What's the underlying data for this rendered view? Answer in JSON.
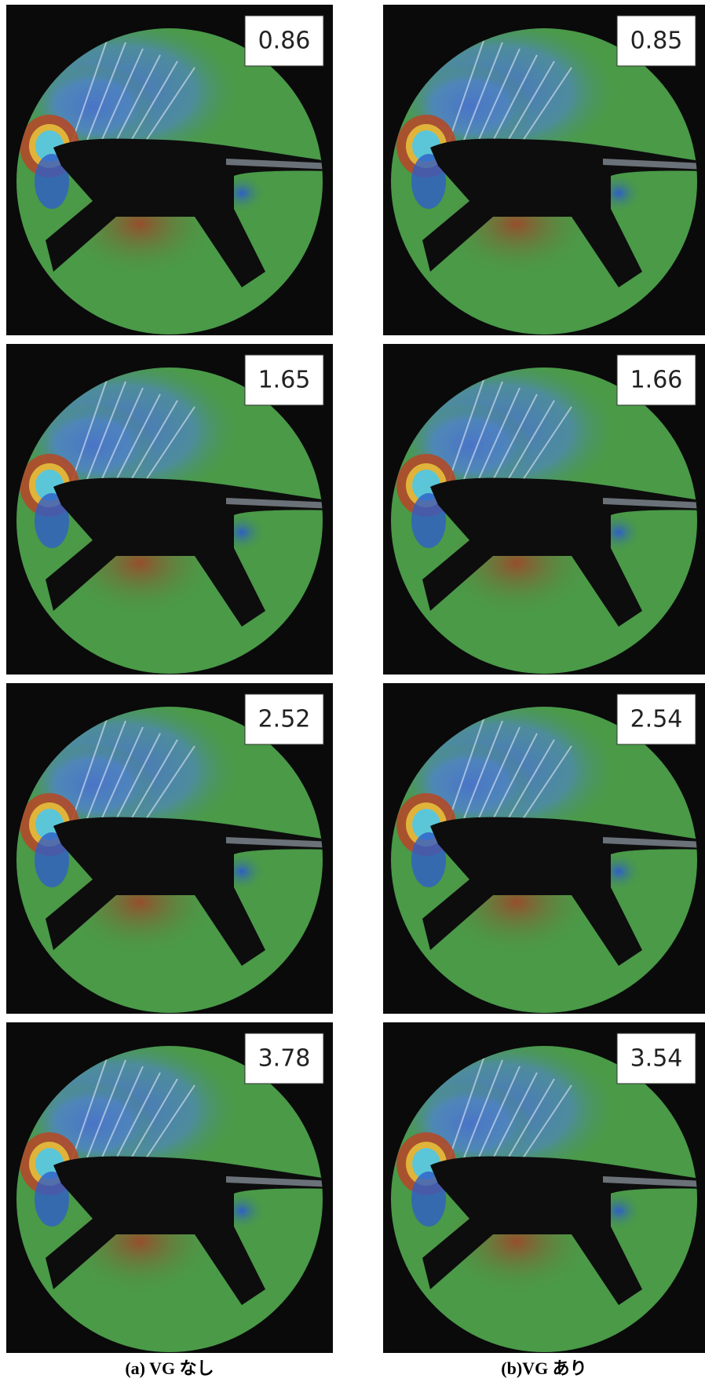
{
  "columns": [
    {
      "caption": "(a) VG なし",
      "panels": [
        "0.86",
        "1.65",
        "2.52",
        "3.78"
      ]
    },
    {
      "caption": "(b)VG あり",
      "panels": [
        "0.85",
        "1.66",
        "2.54",
        "3.54"
      ]
    }
  ]
}
